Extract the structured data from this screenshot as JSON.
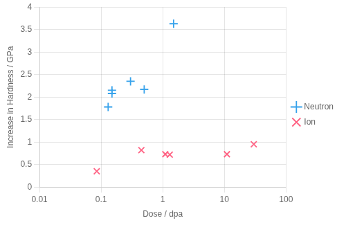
{
  "chart_data": {
    "type": "scatter",
    "x_label": "Dose / dpa",
    "y_label": "Increase in Hardness / GPa",
    "log": "x",
    "xlim": [
      0.01,
      100
    ],
    "ylim": [
      0,
      4
    ],
    "xticks": [
      0.01,
      0.1,
      1,
      10,
      100
    ],
    "yticks": [
      0,
      0.5,
      1,
      1.5,
      2,
      2.5,
      3,
      3.5,
      4
    ],
    "grid": true,
    "legend": "right",
    "series": [
      {
        "name": "Neutron",
        "marker": "plus",
        "x": [
          0.13,
          0.15,
          0.15,
          0.3,
          0.5,
          1.5
        ],
        "values": [
          1.78,
          2.08,
          2.15,
          2.35,
          2.17,
          3.63
        ]
      },
      {
        "name": "Ion",
        "marker": "x",
        "x": [
          0.085,
          0.45,
          1.1,
          1.3,
          11,
          30
        ],
        "values": [
          0.35,
          0.82,
          0.73,
          0.72,
          0.73,
          0.95
        ]
      }
    ]
  }
}
